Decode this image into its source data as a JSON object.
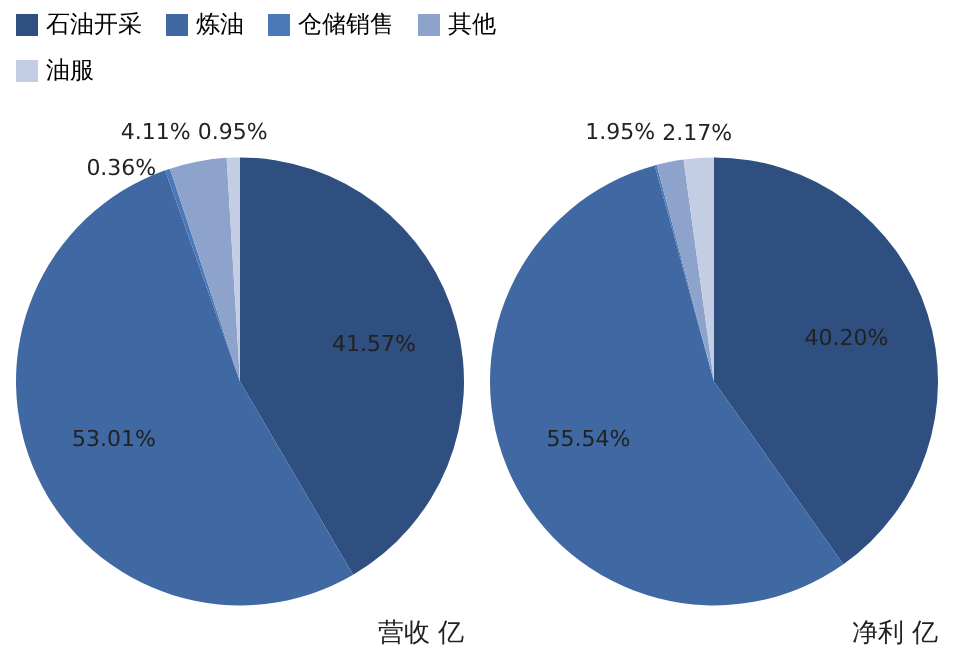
{
  "chart_data": {
    "type": "pie",
    "legend": "top left",
    "categories": [
      "石油开采",
      "炼油",
      "仓储销售",
      "其他",
      "油服"
    ],
    "colors": [
      "#2f4f80",
      "#4068a3",
      "#4a78b8",
      "#8ea3cc",
      "#c3cde3"
    ],
    "series": [
      {
        "name": "营收 亿",
        "values": [
          41.57,
          53.01,
          0.36,
          4.11,
          0.95
        ],
        "value_labels": [
          "41.57%",
          "53.01%",
          "0.36%",
          "4.11%",
          "0.95%"
        ]
      },
      {
        "name": "净利 亿",
        "values": [
          40.2,
          55.54,
          0.14,
          1.95,
          2.17
        ],
        "value_labels": [
          "40.20%",
          "55.54%",
          null,
          "1.95%",
          "2.17%"
        ]
      }
    ]
  }
}
